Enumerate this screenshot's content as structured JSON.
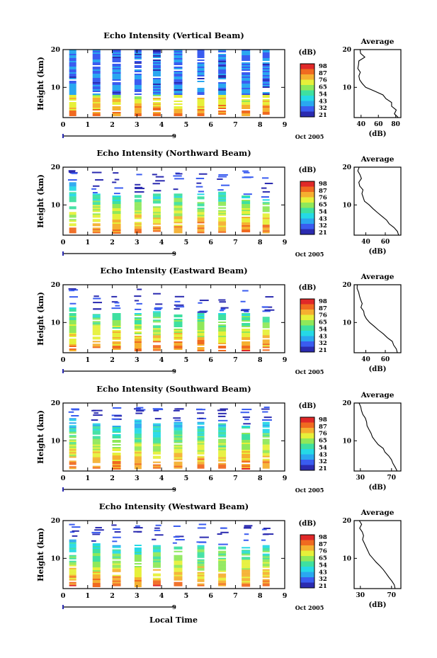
{
  "colors": {
    "scale": [
      "#2b2bb0",
      "#3a5cf0",
      "#2aa7f0",
      "#25d9e6",
      "#3ee0a0",
      "#8fe85a",
      "#e6f03a",
      "#f5b030",
      "#f06a20",
      "#e02828"
    ],
    "line": "#000000"
  },
  "x_axis_label": "Local Time",
  "profile_title": "Average",
  "profile_unit": "(dB)",
  "colorbar_unit": "(dB)",
  "colorbar_ticks": [
    "98",
    "87",
    "76",
    "65",
    "54",
    "43",
    "32",
    "21"
  ],
  "date_label": "Oct 2005",
  "date_marker": "9",
  "chart_data": [
    {
      "type": "heatmap",
      "title": "Echo Intensity (Vertical Beam)",
      "ylabel": "Height (km)",
      "x_ticks": [
        "0",
        "1",
        "2",
        "3",
        "4",
        "5",
        "6",
        "7",
        "8",
        "9"
      ],
      "y_ticks": [
        "10",
        "20"
      ],
      "xlim": [
        0,
        9
      ],
      "ylim": [
        2,
        20
      ],
      "colorbar_range": [
        21,
        98
      ],
      "columns": [
        0.25,
        1.2,
        2.0,
        2.9,
        3.65,
        4.5,
        5.45,
        6.3,
        7.25,
        8.1
      ],
      "column_top_km": [
        20,
        20,
        20,
        20,
        20,
        20,
        20,
        20,
        20,
        20
      ],
      "profile": {
        "xlabel": "(dB)",
        "x_ticks": [
          "40",
          "60",
          "80"
        ],
        "y_ticks": [
          "10",
          "20"
        ],
        "xlim": [
          32,
          86
        ],
        "ylim": [
          2,
          20
        ],
        "height_km": [
          20,
          19,
          18,
          17,
          16,
          15,
          14,
          13,
          12,
          11,
          10,
          9,
          8,
          7,
          6,
          5,
          4,
          3,
          2
        ],
        "db": [
          38,
          40,
          44,
          39,
          37,
          37,
          38,
          39,
          38,
          40,
          46,
          56,
          65,
          70,
          74,
          76,
          80,
          78,
          82
        ]
      }
    },
    {
      "type": "heatmap",
      "title": "Echo Intensity (Northward Beam)",
      "ylabel": "Height (km)",
      "x_ticks": [
        "0",
        "1",
        "2",
        "3",
        "4",
        "5",
        "6",
        "7",
        "8",
        "9"
      ],
      "y_ticks": [
        "10",
        "20"
      ],
      "xlim": [
        0,
        9
      ],
      "ylim": [
        2,
        20
      ],
      "colorbar_range": [
        21,
        98
      ],
      "columns": [
        0.25,
        1.2,
        2.0,
        2.9,
        3.65,
        4.5,
        5.45,
        6.3,
        7.25,
        8.1
      ],
      "column_top_km": [
        16,
        13,
        12.5,
        13,
        13,
        13,
        13,
        13.5,
        12.5,
        11.5
      ],
      "profile": {
        "xlabel": "(dB)",
        "x_ticks": [
          "40",
          "60"
        ],
        "y_ticks": [
          "10",
          "20"
        ],
        "xlim": [
          28,
          76
        ],
        "ylim": [
          2,
          20
        ],
        "height_km": [
          20,
          19,
          18,
          17,
          16,
          15,
          14,
          13,
          12,
          11,
          10,
          9,
          8,
          7,
          6,
          5,
          4,
          3,
          2
        ],
        "db": [
          32,
          33,
          33,
          34,
          34,
          35,
          36,
          37,
          38,
          40,
          43,
          47,
          52,
          57,
          61,
          65,
          69,
          72,
          74
        ]
      }
    },
    {
      "type": "heatmap",
      "title": "Echo Intensity (Eastward Beam)",
      "ylabel": "Height (km)",
      "x_ticks": [
        "0",
        "1",
        "2",
        "3",
        "4",
        "5",
        "6",
        "7",
        "8",
        "9"
      ],
      "y_ticks": [
        "10",
        "20"
      ],
      "xlim": [
        0,
        9
      ],
      "ylim": [
        2,
        20
      ],
      "colorbar_range": [
        21,
        98
      ],
      "columns": [
        0.25,
        1.2,
        2.0,
        2.9,
        3.65,
        4.5,
        5.45,
        6.3,
        7.25,
        8.1
      ],
      "column_top_km": [
        14,
        13,
        12.5,
        12.5,
        13,
        12.5,
        12.5,
        12.5,
        12.5,
        11.5
      ],
      "profile": {
        "xlabel": "(dB)",
        "x_ticks": [
          "40",
          "60"
        ],
        "y_ticks": [
          "10",
          "20"
        ],
        "xlim": [
          28,
          76
        ],
        "ylim": [
          2,
          20
        ],
        "height_km": [
          20,
          19,
          18,
          17,
          16,
          15,
          14,
          13,
          12,
          11,
          10,
          9,
          8,
          7,
          6,
          5,
          4,
          3,
          2
        ],
        "db": [
          31,
          32,
          33,
          34,
          35,
          36,
          36,
          37,
          39,
          41,
          44,
          48,
          53,
          58,
          63,
          67,
          70,
          72,
          73
        ]
      }
    },
    {
      "type": "heatmap",
      "title": "Echo Intensity (Southward Beam)",
      "ylabel": "Height (km)",
      "x_ticks": [
        "0",
        "1",
        "2",
        "3",
        "4",
        "5",
        "6",
        "7",
        "8",
        "9"
      ],
      "y_ticks": [
        "10",
        "20"
      ],
      "xlim": [
        0,
        9
      ],
      "ylim": [
        2,
        20
      ],
      "colorbar_range": [
        21,
        98
      ],
      "columns": [
        0.25,
        1.2,
        2.0,
        2.9,
        3.65,
        4.5,
        5.45,
        6.3,
        7.25,
        8.1
      ],
      "column_top_km": [
        16,
        15,
        14,
        16,
        15,
        15,
        15,
        15,
        14,
        15
      ],
      "profile": {
        "xlabel": "(dB)",
        "x_ticks": [
          "30",
          "70"
        ],
        "y_ticks": [
          "10",
          "20"
        ],
        "xlim": [
          22,
          82
        ],
        "ylim": [
          2,
          20
        ],
        "height_km": [
          20,
          19,
          18,
          17,
          16,
          15,
          14,
          13,
          12,
          11,
          10,
          9,
          8,
          7,
          6,
          5,
          4,
          3,
          2
        ],
        "db": [
          28,
          29,
          31,
          33,
          35,
          37,
          39,
          41,
          43,
          46,
          50,
          54,
          58,
          62,
          66,
          70,
          73,
          75,
          77
        ]
      }
    },
    {
      "type": "heatmap",
      "title": "Echo Intensity (Westward Beam)",
      "ylabel": "Height (km)",
      "x_ticks": [
        "0",
        "1",
        "2",
        "3",
        "4",
        "5",
        "6",
        "7",
        "8",
        "9"
      ],
      "y_ticks": [
        "10",
        "20"
      ],
      "xlim": [
        0,
        9
      ],
      "ylim": [
        2,
        20
      ],
      "colorbar_range": [
        21,
        98
      ],
      "columns": [
        0.25,
        1.2,
        2.0,
        2.9,
        3.65,
        4.5,
        5.45,
        6.3,
        7.25,
        8.1
      ],
      "column_top_km": [
        15,
        14,
        13.5,
        14,
        13.5,
        13.5,
        13.5,
        13.5,
        13,
        13.5
      ],
      "profile": {
        "xlabel": "(dB)",
        "x_ticks": [
          "30",
          "70"
        ],
        "y_ticks": [
          "10",
          "20"
        ],
        "xlim": [
          22,
          82
        ],
        "ylim": [
          2,
          20
        ],
        "height_km": [
          20,
          19,
          18,
          17,
          16,
          15,
          14,
          13,
          12,
          11,
          10,
          9,
          8,
          7,
          6,
          5,
          4,
          3,
          2
        ],
        "db": [
          29,
          31,
          30,
          32,
          33,
          34,
          35,
          37,
          40,
          43,
          47,
          51,
          55,
          60,
          64,
          68,
          71,
          74,
          76
        ]
      }
    }
  ]
}
